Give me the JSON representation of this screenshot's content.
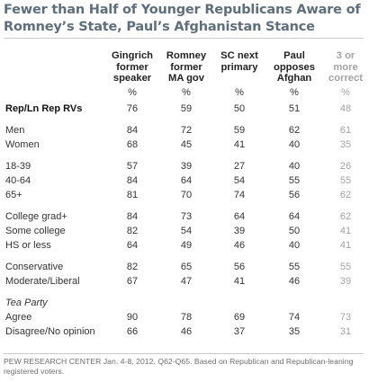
{
  "title": "Fewer than Half of Younger Republicans Aware of Romney’s State, Paul’s Afghanistan Stance",
  "source": "PEW RESEARCH CENTER Jan. 4-8, 2012. Q62-Q65. Based on Republican and Republican-leaning registered voters.",
  "colors": {
    "title": "#5f6e7c",
    "text": "#222222",
    "muted": "#a3a3a3",
    "rule": "#c9c9c9"
  },
  "chart_data": {
    "type": "table",
    "columns": [
      {
        "lines": [
          "Gingrich",
          "former",
          "speaker"
        ],
        "unit": "%"
      },
      {
        "lines": [
          "Romney",
          "former",
          "MA gov"
        ],
        "unit": "%"
      },
      {
        "lines": [
          "SC next",
          "primary"
        ],
        "unit": "%"
      },
      {
        "lines": [
          "Paul",
          "opposes",
          "Afghan"
        ],
        "unit": "%"
      },
      {
        "lines": [
          "3 or",
          "more",
          "correct"
        ],
        "unit": "%",
        "muted": true
      }
    ],
    "rows": [
      {
        "label": "Rep/Ln Rep RVs",
        "values": [
          76,
          59,
          50,
          51,
          48
        ],
        "bold": true
      },
      {
        "label": "Men",
        "values": [
          84,
          72,
          59,
          62,
          61
        ]
      },
      {
        "label": "Women",
        "values": [
          68,
          45,
          41,
          40,
          35
        ]
      },
      {
        "label": "18-39",
        "values": [
          57,
          39,
          27,
          40,
          26
        ]
      },
      {
        "label": "40-64",
        "values": [
          84,
          64,
          54,
          55,
          55
        ]
      },
      {
        "label": "65+",
        "values": [
          81,
          70,
          74,
          56,
          62
        ]
      },
      {
        "label": "College grad+",
        "values": [
          84,
          73,
          64,
          64,
          62
        ]
      },
      {
        "label": "Some college",
        "values": [
          82,
          54,
          39,
          50,
          41
        ]
      },
      {
        "label": "HS or less",
        "values": [
          64,
          49,
          46,
          40,
          41
        ]
      },
      {
        "label": "Conservative",
        "values": [
          82,
          65,
          56,
          55,
          55
        ]
      },
      {
        "label": "Moderate/Liberal",
        "values": [
          67,
          47,
          41,
          46,
          39
        ]
      },
      {
        "section": "Tea Party"
      },
      {
        "label": "Agree",
        "values": [
          90,
          78,
          69,
          74,
          73
        ]
      },
      {
        "label": "Disagree/No opinion",
        "values": [
          66,
          46,
          37,
          35,
          31
        ]
      }
    ]
  }
}
